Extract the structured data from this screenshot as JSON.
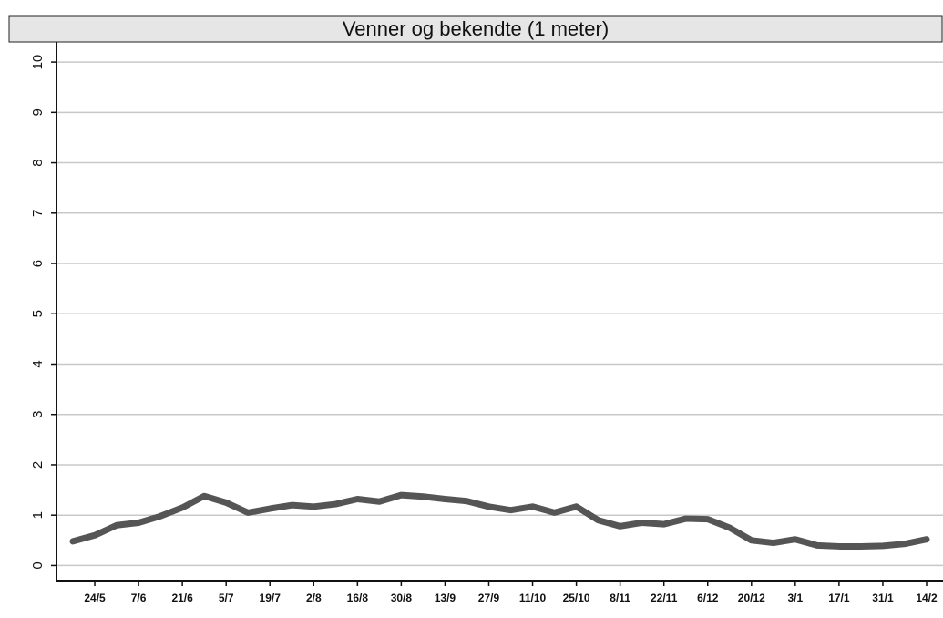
{
  "chart_data": {
    "type": "line",
    "title": "Venner og bekendte (1 meter)",
    "categories": [
      null,
      "24/5",
      null,
      "7/6",
      null,
      "21/6",
      null,
      "5/7",
      null,
      "19/7",
      null,
      "2/8",
      null,
      "16/8",
      null,
      "30/8",
      null,
      "13/9",
      null,
      "27/9",
      null,
      "11/10",
      null,
      "25/10",
      null,
      "8/11",
      null,
      "22/11",
      null,
      "6/12",
      null,
      "20/12",
      null,
      "3/1",
      null,
      "17/1",
      null,
      "31/1",
      null,
      "14/2"
    ],
    "values": [
      0.48,
      0.6,
      0.8,
      0.85,
      0.98,
      1.15,
      1.38,
      1.25,
      1.05,
      1.13,
      1.2,
      1.17,
      1.22,
      1.32,
      1.27,
      1.4,
      1.37,
      1.32,
      1.28,
      1.17,
      1.1,
      1.17,
      1.05,
      1.17,
      0.9,
      0.78,
      0.85,
      0.82,
      0.93,
      0.92,
      0.75,
      0.5,
      0.45,
      0.52,
      0.4,
      0.38,
      0.38,
      0.39,
      0.43,
      0.52
    ],
    "color": "#555555",
    "ylim": [
      -0.3,
      10.4
    ],
    "yticks": [
      0,
      1,
      2,
      3,
      4,
      5,
      6,
      7,
      8,
      9,
      10
    ],
    "grid": true
  }
}
